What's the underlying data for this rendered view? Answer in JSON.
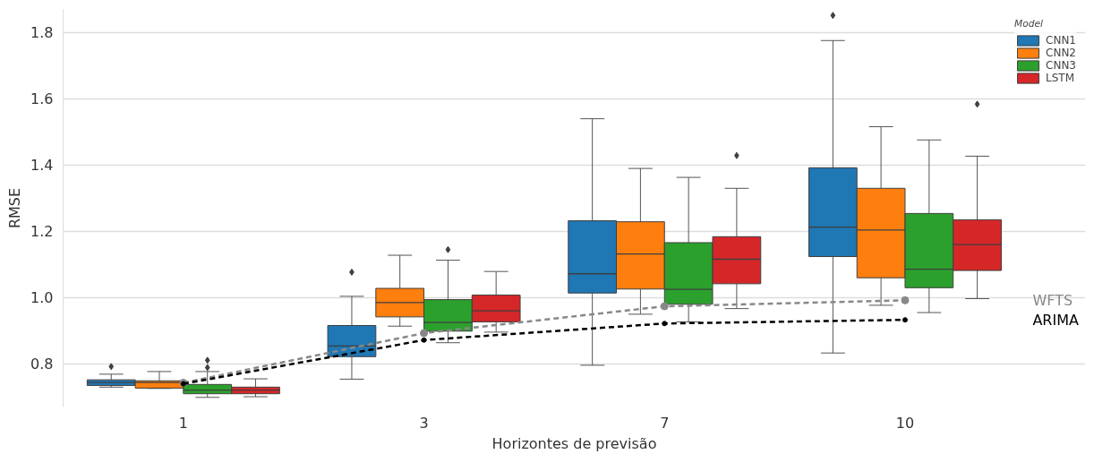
{
  "chart_data": {
    "type": "box",
    "xlabel": "Horizontes de previsão",
    "ylabel": "RMSE",
    "legend_title": "Model",
    "categories": [
      "1",
      "3",
      "7",
      "10"
    ],
    "ylim": [
      0.67,
      1.87
    ],
    "yticks": [
      {
        "value": 0.8,
        "label": "0.8"
      },
      {
        "value": 1.0,
        "label": "1.0"
      },
      {
        "value": 1.2,
        "label": "1.2"
      },
      {
        "value": 1.4,
        "label": "1.4"
      },
      {
        "value": 1.6,
        "label": "1.6"
      },
      {
        "value": 1.8,
        "label": "1.8"
      }
    ],
    "grid": "y",
    "legend": "top right",
    "series": [
      {
        "name": "CNN1",
        "color": "#1f77b4",
        "boxes": [
          {
            "low": 0.73,
            "q1": 0.735,
            "median": 0.744,
            "q3": 0.752,
            "high": 0.769,
            "outliers": [
              0.792
            ]
          },
          {
            "low": 0.754,
            "q1": 0.822,
            "median": 0.854,
            "q3": 0.916,
            "high": 1.004,
            "outliers": [
              1.077
            ]
          },
          {
            "low": 0.796,
            "q1": 1.014,
            "median": 1.072,
            "q3": 1.232,
            "high": 1.54
          },
          {
            "low": 0.833,
            "q1": 1.124,
            "median": 1.213,
            "q3": 1.392,
            "high": 1.776,
            "outliers": [
              1.852
            ]
          }
        ]
      },
      {
        "name": "CNN2",
        "color": "#ff7f0e",
        "boxes": [
          {
            "low": 0.726,
            "q1": 0.727,
            "median": 0.744,
            "q3": 0.749,
            "high": 0.777
          },
          {
            "low": 0.914,
            "q1": 0.942,
            "median": 0.985,
            "q3": 1.028,
            "high": 1.128
          },
          {
            "low": 0.95,
            "q1": 1.026,
            "median": 1.132,
            "q3": 1.229,
            "high": 1.39
          },
          {
            "low": 0.977,
            "q1": 1.06,
            "median": 1.204,
            "q3": 1.33,
            "high": 1.516
          }
        ]
      },
      {
        "name": "CNN3",
        "color": "#2ca02c",
        "boxes": [
          {
            "low": 0.699,
            "q1": 0.71,
            "median": 0.721,
            "q3": 0.738,
            "high": 0.777,
            "outliers": [
              0.789,
              0.811
            ]
          },
          {
            "low": 0.864,
            "q1": 0.899,
            "median": 0.925,
            "q3": 0.994,
            "high": 1.113,
            "outliers": [
              1.145
            ]
          },
          {
            "low": 0.927,
            "q1": 0.98,
            "median": 1.025,
            "q3": 1.166,
            "high": 1.363
          },
          {
            "low": 0.955,
            "q1": 1.03,
            "median": 1.086,
            "q3": 1.254,
            "high": 1.476
          }
        ]
      },
      {
        "name": "LSTM",
        "color": "#d62728",
        "boxes": [
          {
            "low": 0.701,
            "q1": 0.71,
            "median": 0.721,
            "q3": 0.73,
            "high": 0.755
          },
          {
            "low": 0.896,
            "q1": 0.927,
            "median": 0.96,
            "q3": 1.008,
            "high": 1.079
          },
          {
            "low": 0.967,
            "q1": 1.042,
            "median": 1.116,
            "q3": 1.184,
            "high": 1.33,
            "outliers": [
              1.429
            ]
          },
          {
            "low": 0.997,
            "q1": 1.082,
            "median": 1.16,
            "q3": 1.235,
            "high": 1.427,
            "outliers": [
              1.584
            ]
          }
        ]
      },
      {
        "name": "WFTS",
        "type": "line",
        "color": "#888888",
        "line_style": "dashed",
        "marker": "circle",
        "values": [
          0.743,
          0.893,
          0.974,
          0.992
        ]
      },
      {
        "name": "ARIMA",
        "type": "line",
        "color": "#000000",
        "line_style": "dashed",
        "marker": "circle",
        "values": [
          0.74,
          0.872,
          0.922,
          0.933
        ]
      }
    ]
  }
}
